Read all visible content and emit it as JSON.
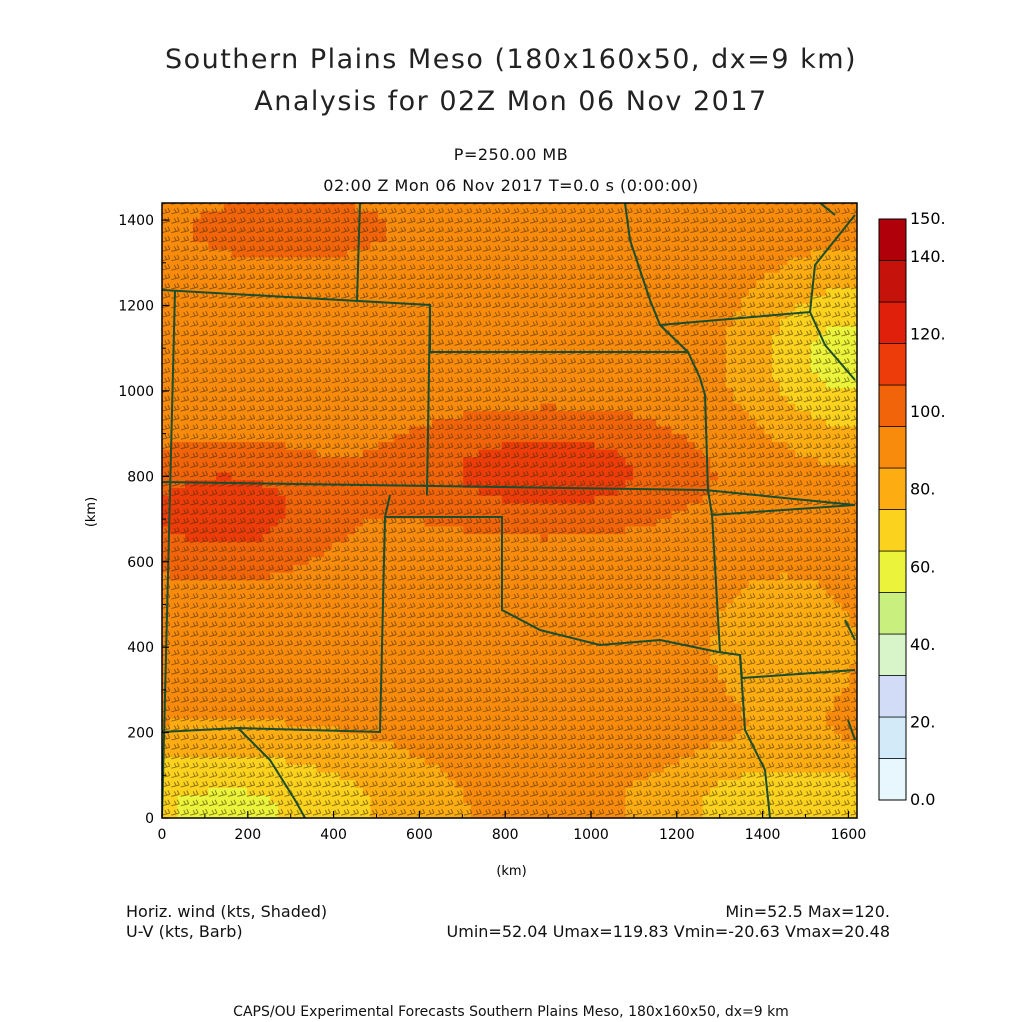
{
  "header": {
    "title_line1": "Southern Plains Meso (180x160x50, dx=9 km)",
    "title_line2": "Analysis for 02Z Mon 06 Nov 2017",
    "level": "P=250.00 MB",
    "time": "02:00 Z Mon 06 Nov 2017    T=0.0 s (0:00:00)"
  },
  "chart_data": {
    "type": "heatmap",
    "xlabel": "(km)",
    "ylabel": "(km)",
    "xlim": [
      0,
      1620
    ],
    "ylim": [
      0,
      1440
    ],
    "xticks": [
      "0",
      "200",
      "400",
      "600",
      "800",
      "1000",
      "1200",
      "1400",
      "1600"
    ],
    "yticks": [
      "0",
      "200",
      "400",
      "600",
      "800",
      "1000",
      "1200",
      "1400"
    ],
    "colorbar": {
      "labels": [
        "0.0",
        "20.",
        "40.",
        "60.",
        "80.",
        "100.",
        "120.",
        "140.",
        "150."
      ],
      "colors": [
        "#e8f6fd",
        "#d3ebf8",
        "#d2dcf6",
        "#d7f5c8",
        "#c9f07e",
        "#ebf43a",
        "#fbd21e",
        "#fdad12",
        "#f98b0c",
        "#f2640a",
        "#ed3c0a",
        "#e0200a",
        "#c5120a",
        "#b0000a"
      ]
    },
    "wind_field_features": [
      {
        "name": "jet core west",
        "x_km": 180,
        "y_km": 730,
        "speed_kts": 115
      },
      {
        "name": "jet core central",
        "x_km": 900,
        "y_km": 810,
        "speed_kts": 120
      },
      {
        "name": "weak southwest",
        "x_km": 200,
        "y_km": 60,
        "speed_kts": 60
      },
      {
        "name": "weak northeast",
        "x_km": 1580,
        "y_km": 1100,
        "speed_kts": 58
      },
      {
        "name": "weak southeast",
        "x_km": 1500,
        "y_km": 40,
        "speed_kts": 62
      }
    ],
    "min": "Min=52.5",
    "max": "Max=120.",
    "umin": "Umin=52.04",
    "umax": "Umax=119.83",
    "vmin": "Vmin=-20.63",
    "vmax": "Vmax=20.48"
  },
  "footer": {
    "left1": "Horiz. wind (kts, Shaded)",
    "left2": "U-V (kts, Barb)",
    "credit": "CAPS/OU Experimental Forecasts  Southern Plains Meso, 180x160x50, dx=9 km"
  }
}
